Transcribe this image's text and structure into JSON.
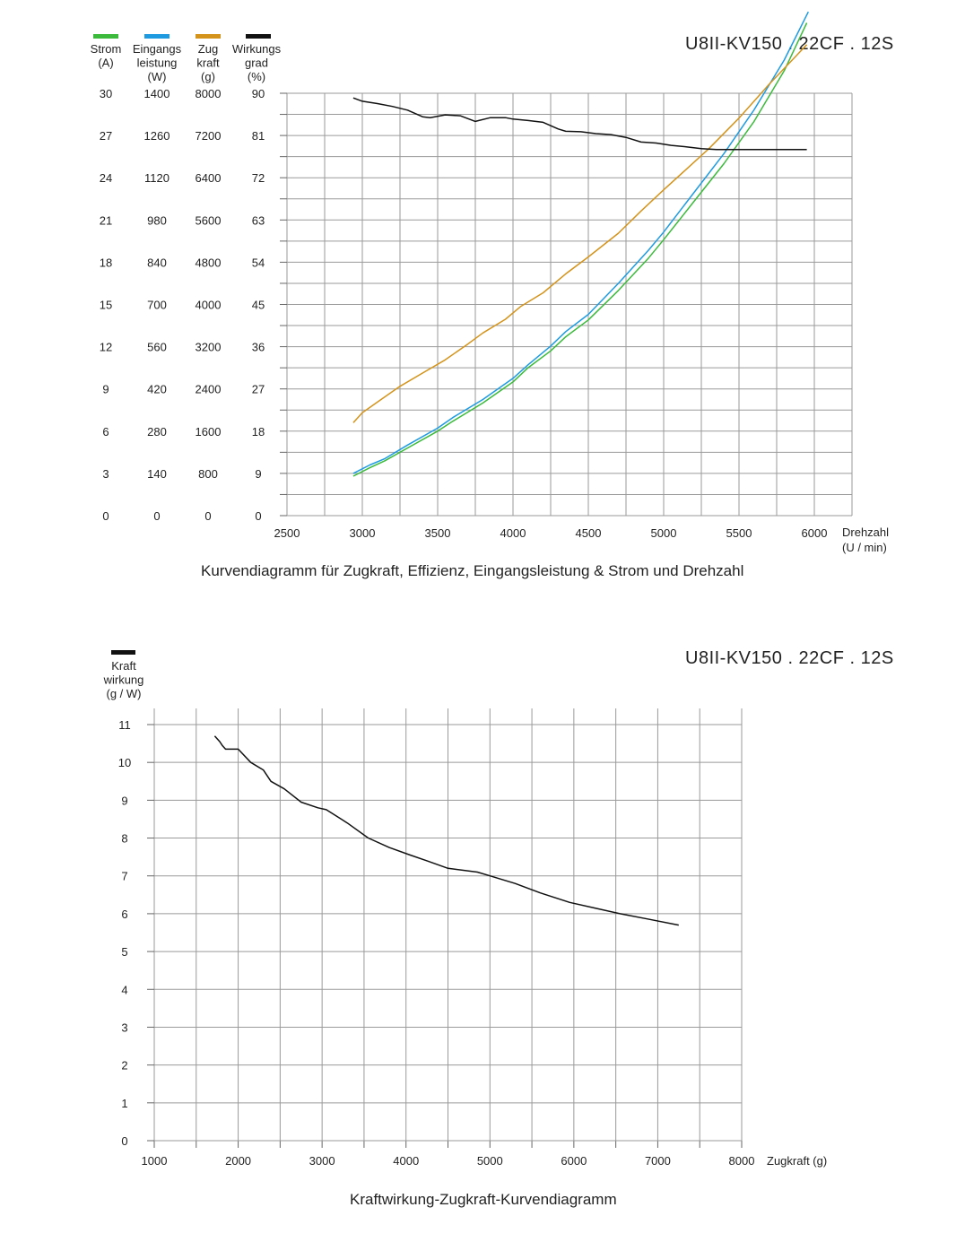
{
  "page_title_1": "U8II-KV150 . 22CF . 12S",
  "page_title_2": "U8II-KV150 . 22CF . 12S",
  "chart_data": [
    {
      "type": "line",
      "caption": "Kurvendiagramm für Zugkraft, Effizienz, Eingangsleistung &  Strom und Drehzahl",
      "xlabel": [
        "Drehzahl",
        "(U / min)"
      ],
      "xlim": [
        2500,
        6250
      ],
      "xticks": [
        2500,
        3000,
        3500,
        4000,
        4500,
        5000,
        5500,
        6000
      ],
      "grid": true,
      "axes": [
        {
          "key": "strom",
          "label": [
            "Strom",
            "(A)"
          ],
          "ticks": [
            "0",
            "3",
            "6",
            "9",
            "12",
            "15",
            "18",
            "21",
            "24",
            "27",
            "30"
          ],
          "ylim": [
            0,
            30
          ],
          "color": "#3cba3c"
        },
        {
          "key": "leistung",
          "label": [
            "Eingangs",
            "leistung",
            "(W)"
          ],
          "ticks": [
            "0",
            "140",
            "280",
            "420",
            "560",
            "700",
            "840",
            "980",
            "1120",
            "1260",
            "1400"
          ],
          "ylim": [
            0,
            1400
          ],
          "color": "#1e9be0"
        },
        {
          "key": "zug",
          "label": [
            "Zug",
            "kraft",
            "(g)"
          ],
          "ticks": [
            "0",
            "800",
            "1600",
            "2400",
            "3200",
            "4000",
            "4800",
            "5600",
            "6400",
            "7200",
            "8000"
          ],
          "ylim": [
            0,
            8000
          ],
          "color": "#d4941c"
        },
        {
          "key": "wirkung",
          "label": [
            "Wirkungs",
            "grad",
            "(%)"
          ],
          "ticks": [
            "0",
            "9",
            "18",
            "27",
            "36",
            "45",
            "54",
            "63",
            "72",
            "81",
            "90"
          ],
          "ylim": [
            0,
            90
          ],
          "color": "#111111"
        }
      ],
      "series": [
        {
          "axis": "strom",
          "color": "#3cba3c",
          "x": [
            2940,
            3050,
            3150,
            3300,
            3500,
            3600,
            3800,
            4000,
            4100,
            4250,
            4350,
            4500,
            4700,
            4900,
            5000,
            5200,
            5400,
            5600,
            5800,
            5950
          ],
          "y": [
            2.8,
            3.4,
            3.9,
            4.8,
            6.0,
            6.7,
            8.0,
            9.5,
            10.5,
            11.7,
            12.7,
            13.9,
            16.0,
            18.3,
            19.6,
            22.3,
            25.0,
            28.0,
            31.6,
            35.0
          ]
        },
        {
          "axis": "leistung",
          "color": "#1e9be0",
          "x": [
            2940,
            3050,
            3150,
            3300,
            3500,
            3600,
            3800,
            4000,
            4100,
            4250,
            4350,
            4500,
            4700,
            4900,
            5000,
            5200,
            5400,
            5600,
            5800,
            5960
          ],
          "y": [
            140,
            168,
            189,
            234,
            290,
            325,
            385,
            455,
            500,
            562,
            610,
            667,
            770,
            880,
            940,
            1070,
            1200,
            1345,
            1510,
            1670
          ]
        },
        {
          "axis": "zug",
          "color": "#d4941c",
          "x": [
            2940,
            3000,
            3100,
            3250,
            3400,
            3550,
            3700,
            3800,
            3950,
            4050,
            4200,
            4350,
            4500,
            4700,
            4850,
            5000,
            5150,
            5300,
            5500,
            5700,
            5950
          ],
          "y": [
            1760,
            1950,
            2150,
            2450,
            2700,
            2950,
            3250,
            3460,
            3720,
            3960,
            4220,
            4580,
            4900,
            5350,
            5770,
            6170,
            6560,
            6950,
            7530,
            8170,
            8920
          ]
        },
        {
          "axis": "wirkung",
          "color": "#111111",
          "x": [
            2940,
            3000,
            3100,
            3200,
            3300,
            3400,
            3450,
            3550,
            3650,
            3750,
            3850,
            3950,
            4000,
            4100,
            4200,
            4300,
            4350,
            4450,
            4550,
            4650,
            4750,
            4850,
            4950,
            5050,
            5150,
            5250,
            5350,
            5450,
            5550,
            5650,
            5750,
            5850,
            5950
          ],
          "y": [
            89.0,
            88.3,
            87.8,
            87.2,
            86.4,
            85.0,
            84.8,
            85.4,
            85.2,
            84.0,
            84.8,
            84.8,
            84.5,
            84.2,
            83.8,
            82.4,
            81.9,
            81.8,
            81.4,
            81.2,
            80.6,
            79.6,
            79.4,
            78.9,
            78.6,
            78.2,
            78.0,
            78.0,
            78.0,
            78.0,
            78.0,
            78.0,
            78.0
          ]
        }
      ]
    },
    {
      "type": "line",
      "caption": "Kraftwirkung-Zugkraft-Kurvendiagramm",
      "ylabel": [
        "Kraft",
        "wirkung",
        "(g / W)"
      ],
      "xlabel": "Zugkraft (g)",
      "xlim": [
        1000,
        8000
      ],
      "xticks": [
        "1000",
        "2000",
        "3000",
        "4000",
        "5000",
        "6000",
        "7000",
        "8000"
      ],
      "ylim": [
        0,
        11
      ],
      "yticks": [
        "0",
        "1",
        "2",
        "3",
        "4",
        "5",
        "6",
        "7",
        "8",
        "9",
        "10",
        "11"
      ],
      "grid": true,
      "series": [
        {
          "color": "#111111",
          "x": [
            1720,
            1780,
            1810,
            1850,
            2000,
            2150,
            2300,
            2390,
            2550,
            2750,
            2950,
            3050,
            3300,
            3550,
            3800,
            4050,
            4250,
            4500,
            4850,
            5000,
            5300,
            5600,
            5950,
            6250,
            6550,
            6900,
            7250
          ],
          "y": [
            10.7,
            10.55,
            10.45,
            10.35,
            10.35,
            10.0,
            9.8,
            9.5,
            9.3,
            8.95,
            8.8,
            8.75,
            8.4,
            8.0,
            7.75,
            7.55,
            7.4,
            7.2,
            7.1,
            7.0,
            6.8,
            6.55,
            6.3,
            6.15,
            6.0,
            5.85,
            5.7
          ]
        }
      ]
    }
  ]
}
